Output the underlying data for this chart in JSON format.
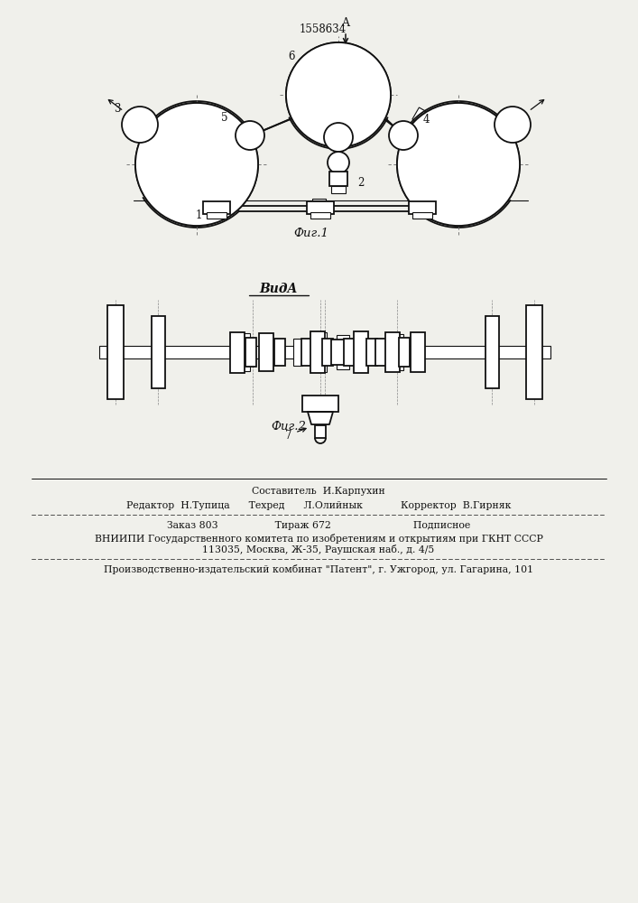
{
  "patent_number": "1558634",
  "fig1_label": "Фиг.1",
  "fig2_label": "Фиг.2",
  "view_label": "ВидA",
  "bg_color": "#f0f0eb",
  "line_color": "#111111",
  "footer_lines": [
    "Составитель  И.Карпухин",
    "Редактор  Н.Тупица      Техред      Л.Олийнык            Корректор  В.Гирняк",
    "Заказ 803                  Тираж 672                          Подписное",
    "ВНИИПИ Государственного комитета по изобретениям и открытиям при ГКНТ СССР",
    "113035, Москва, Ж-35, Раушская наб., д. 4/5",
    "Производственно-издательский комбинат \"Патент\", г. Ужгород, ул. Гагарина, 101"
  ]
}
